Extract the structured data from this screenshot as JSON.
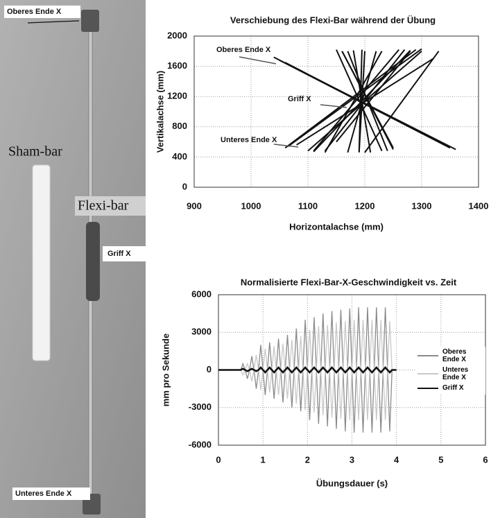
{
  "photo": {
    "labels": {
      "top_end": "Oberes Ende X",
      "sham_bar": "Sham-bar",
      "flexi_bar": "Flexi-bar",
      "grip": "Griff X",
      "bottom_end": "Unteres Ende X"
    }
  },
  "chart_data": [
    {
      "type": "segments",
      "title": "Verschiebung des Flexi-Bar während der Übung",
      "x_label": "Horizontalachse (mm)",
      "y_label": "Vertikalachse (mm)",
      "xlim": [
        900,
        1400
      ],
      "xticks": [
        900,
        1000,
        1100,
        1200,
        1300,
        1400
      ],
      "ylim": [
        0,
        2000
      ],
      "yticks": [
        0,
        400,
        800,
        1200,
        1600,
        2000
      ],
      "grid": true,
      "color": "#111111",
      "annotations": [
        "Oberes Ende X",
        "Griff X",
        "Unteres Ende X"
      ],
      "segments": [
        {
          "x": [
            1040,
            1360
          ],
          "y": [
            1720,
            500
          ]
        },
        {
          "x": [
            1050,
            1350
          ],
          "y": [
            1680,
            520
          ]
        },
        {
          "x": [
            1060,
            1290
          ],
          "y": [
            520,
            1820
          ]
        },
        {
          "x": [
            1065,
            1300
          ],
          "y": [
            540,
            1830
          ]
        },
        {
          "x": [
            1110,
            1260
          ],
          "y": [
            480,
            1820
          ]
        },
        {
          "x": [
            1130,
            1230
          ],
          "y": [
            460,
            1800
          ]
        },
        {
          "x": [
            1150,
            1280
          ],
          "y": [
            600,
            1800
          ]
        },
        {
          "x": [
            1160,
            1250
          ],
          "y": [
            1800,
            500
          ]
        },
        {
          "x": [
            1170,
            1240
          ],
          "y": [
            1800,
            480
          ]
        },
        {
          "x": [
            1180,
            1210
          ],
          "y": [
            1810,
            460
          ]
        },
        {
          "x": [
            1190,
            1200
          ],
          "y": [
            460,
            1800
          ]
        },
        {
          "x": [
            1195,
            1190
          ],
          "y": [
            1820,
            470
          ]
        },
        {
          "x": [
            1200,
            1330
          ],
          "y": [
            460,
            1800
          ]
        },
        {
          "x": [
            1220,
            1170
          ],
          "y": [
            1800,
            460
          ]
        },
        {
          "x": [
            1150,
            1230
          ],
          "y": [
            1820,
            480
          ]
        },
        {
          "x": [
            1270,
            1130
          ],
          "y": [
            1820,
            480
          ]
        },
        {
          "x": [
            1280,
            1110
          ],
          "y": [
            1810,
            470
          ]
        },
        {
          "x": [
            1300,
            1100
          ],
          "y": [
            1800,
            480
          ]
        },
        {
          "x": [
            1320,
            1080
          ],
          "y": [
            1700,
            560
          ]
        },
        {
          "x": [
            1250,
            1160
          ],
          "y": [
            520,
            1800
          ]
        },
        {
          "x": [
            1340,
            1060
          ],
          "y": [
            560,
            1650
          ]
        }
      ]
    },
    {
      "type": "line",
      "title": "Normalisierte Flexi-Bar-X-Geschwindigkeit vs. Zeit",
      "x_label": "Übungsdauer (s)",
      "y_label": "mm pro Sekunde",
      "xlim": [
        0,
        6
      ],
      "xticks": [
        0,
        1,
        2,
        3,
        4,
        5,
        6
      ],
      "ylim": [
        -6000,
        6000
      ],
      "yticks": [
        -6000,
        -3000,
        0,
        3000,
        6000
      ],
      "grid": true,
      "legend": "right",
      "x": [
        0,
        0.5,
        0.55,
        0.6,
        0.65,
        0.7,
        0.75,
        0.8,
        0.85,
        0.9,
        0.95,
        1,
        1.05,
        1.1,
        1.15,
        1.2,
        1.25,
        1.3,
        1.35,
        1.4,
        1.45,
        1.5,
        1.55,
        1.6,
        1.65,
        1.7,
        1.75,
        1.8,
        1.85,
        1.9,
        1.95,
        2,
        2.05,
        2.1,
        2.15,
        2.2,
        2.25,
        2.3,
        2.35,
        2.4,
        2.45,
        2.5,
        2.55,
        2.6,
        2.65,
        2.7,
        2.75,
        2.8,
        2.85,
        2.9,
        2.95,
        3,
        3.05,
        3.1,
        3.15,
        3.2,
        3.25,
        3.3,
        3.35,
        3.4,
        3.45,
        3.5,
        3.55,
        3.6,
        3.65,
        3.7,
        3.75,
        3.8,
        3.85,
        3.9,
        4
      ],
      "series": [
        {
          "name": "Oberes Ende X",
          "color": "#8a8a8a",
          "values": [
            0,
            0,
            500,
            0,
            -700,
            0,
            1100,
            0,
            -1500,
            0,
            2000,
            0,
            -2000,
            0,
            2200,
            0,
            -2300,
            0,
            2500,
            0,
            -2600,
            0,
            2800,
            0,
            -3000,
            0,
            3300,
            0,
            -3300,
            0,
            4000,
            0,
            -4000,
            0,
            4200,
            0,
            -4300,
            0,
            4500,
            0,
            -4500,
            0,
            4700,
            0,
            -4700,
            0,
            4800,
            0,
            -4900,
            0,
            4900,
            0,
            -5000,
            0,
            5000,
            0,
            -5000,
            0,
            5000,
            0,
            -5000,
            0,
            5000,
            0,
            -5000,
            0,
            5000,
            0,
            -4900,
            0,
            0
          ]
        },
        {
          "name": "Unteres Ende X",
          "color": "#c8c8c8",
          "values": [
            0,
            0,
            -400,
            0,
            500,
            0,
            -900,
            0,
            1200,
            0,
            -1600,
            0,
            1700,
            0,
            -1800,
            0,
            1900,
            0,
            -2000,
            0,
            2100,
            0,
            -2300,
            0,
            2400,
            0,
            -2700,
            0,
            2700,
            0,
            -3200,
            0,
            3200,
            0,
            -3400,
            0,
            3500,
            0,
            -3600,
            0,
            3600,
            0,
            -3800,
            0,
            3800,
            0,
            -3900,
            0,
            3900,
            0,
            -4000,
            0,
            4000,
            0,
            -4000,
            0,
            4000,
            0,
            -4000,
            0,
            4000,
            0,
            -4000,
            0,
            4000,
            0,
            -4000,
            0,
            3900,
            0,
            0
          ]
        },
        {
          "name": "Griff X",
          "color": "#111111",
          "values": [
            0,
            0,
            100,
            0,
            -100,
            0,
            100,
            0,
            -100,
            0,
            200,
            0,
            -200,
            0,
            200,
            0,
            -200,
            0,
            200,
            0,
            -200,
            0,
            200,
            0,
            -200,
            0,
            200,
            0,
            -200,
            0,
            200,
            0,
            -200,
            0,
            200,
            0,
            -200,
            0,
            200,
            0,
            -200,
            0,
            200,
            0,
            -200,
            0,
            200,
            0,
            -200,
            0,
            200,
            0,
            -200,
            0,
            200,
            0,
            -200,
            0,
            200,
            0,
            -200,
            0,
            200,
            0,
            -200,
            0,
            200,
            0,
            -200,
            0,
            0
          ]
        }
      ]
    }
  ]
}
